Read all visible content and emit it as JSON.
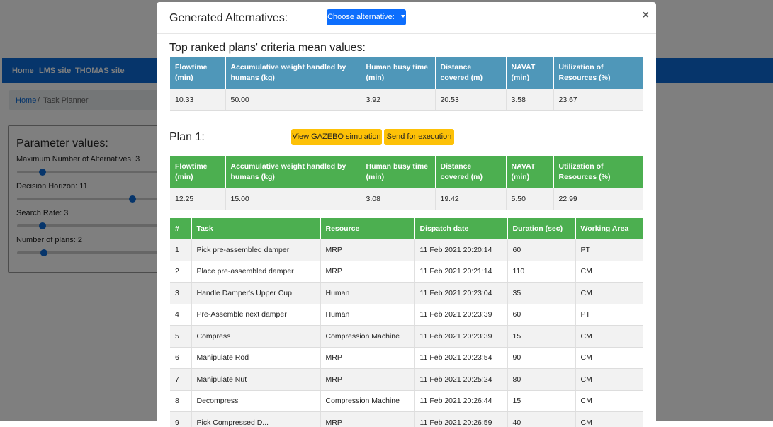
{
  "nav": {
    "home": "Home",
    "lms": "LMS site",
    "thomas": "THOMAS site"
  },
  "breadcrumb": {
    "home": "Home",
    "sep": "/",
    "current": "Task Planner"
  },
  "params": {
    "title": "Parameter values:",
    "items": [
      {
        "label": "Maximum Number of Alternatives: 3",
        "value_fraction": 0.15
      },
      {
        "label": "Decision Horizon: 11",
        "value_fraction": 0.7
      },
      {
        "label": "Search Rate: 3",
        "value_fraction": 0.15
      },
      {
        "label": "Number of plans: 2",
        "value_fraction": 0.15
      }
    ]
  },
  "modal": {
    "title": "Generated Alternatives:",
    "choose_label": "Choose alternative:",
    "close": "×",
    "top_title": "Top ranked plans' criteria mean values:",
    "plan_title": "Plan 1:",
    "gazebo_label": "View GAZEBO simulation",
    "execute_label": "Send for execution"
  },
  "criteria_headers": [
    "Flowtime (min)",
    "Accumulative weight handled by humans (kg)",
    "Human busy time (min)",
    "Distance covered (m)",
    "NAVAT (min)",
    "Utilization of Resources (%)"
  ],
  "top_values": [
    "10.33",
    "50.00",
    "3.92",
    "20.53",
    "3.58",
    "23.67"
  ],
  "plan_values": [
    "12.25",
    "15.00",
    "3.08",
    "19.42",
    "5.50",
    "22.99"
  ],
  "task_headers": [
    "#",
    "Task",
    "Resource",
    "Dispatch date",
    "Duration (sec)",
    "Working Area"
  ],
  "tasks": [
    [
      "1",
      "Pick pre-assembled damper",
      "MRP",
      "11 Feb 2021 20:20:14",
      "60",
      "PT"
    ],
    [
      "2",
      "Place pre-assembled damper",
      "MRP",
      "11 Feb 2021 20:21:14",
      "110",
      "CM"
    ],
    [
      "3",
      "Handle Damper's Upper Cup",
      "Human",
      "11 Feb 2021 20:23:04",
      "35",
      "CM"
    ],
    [
      "4",
      "Pre-Assemble next damper",
      "Human",
      "11 Feb 2021 20:23:39",
      "60",
      "PT"
    ],
    [
      "5",
      "Compress",
      "Compression Machine",
      "11 Feb 2021 20:23:39",
      "15",
      "CM"
    ],
    [
      "6",
      "Manipulate Rod",
      "MRP",
      "11 Feb 2021 20:23:54",
      "90",
      "CM"
    ],
    [
      "7",
      "Manipulate Nut",
      "MRP",
      "11 Feb 2021 20:25:24",
      "80",
      "CM"
    ],
    [
      "8",
      "Decompress",
      "Compression Machine",
      "11 Feb 2021 20:26:44",
      "15",
      "CM"
    ],
    [
      "9",
      "Pick Compressed D...",
      "MRP",
      "11 Feb 2021 20:26:59",
      "40",
      "CM"
    ]
  ]
}
